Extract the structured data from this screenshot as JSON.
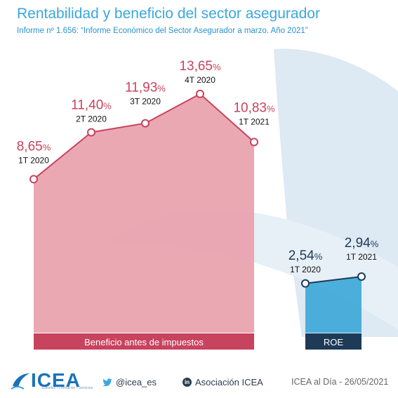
{
  "title": "Rentabilidad y beneficio del sector asegurador",
  "subtitle": "Informe nº 1.656: “Informe Económico del Sector Asegurador a marzo. Año 2021”",
  "chart_data": [
    {
      "type": "area",
      "name": "Beneficio antes de impuestos",
      "categories": [
        "1T 2020",
        "2T 2020",
        "3T 2020",
        "4T 2020",
        "1T 2021"
      ],
      "values": [
        8.65,
        11.4,
        11.93,
        13.65,
        10.83
      ],
      "value_labels": [
        "8,65",
        "11,40",
        "11,93",
        "13,65",
        "10,83"
      ],
      "unit": "%",
      "color": "#e8a1ac",
      "label_color": "#c8435e"
    },
    {
      "type": "area",
      "name": "ROE",
      "categories": [
        "1T 2020",
        "1T 2021"
      ],
      "values": [
        2.54,
        2.94
      ],
      "value_labels": [
        "2,54",
        "2,94"
      ],
      "unit": "%",
      "color": "#3ea8d8",
      "label_color": "#1d3a57"
    }
  ],
  "footer": {
    "logo": "ICEA",
    "logo_tagline": "Estudios • Formación • Servicios",
    "twitter": "@icea_es",
    "linkedin": "Asociación ICEA",
    "linkedin_badge": "in",
    "date": "ICEA al Día - 26/05/2021"
  },
  "colors": {
    "accent": "#3aa8dd",
    "profit_band": "#c8435e",
    "roe_band": "#1d3a57",
    "background_shape": "#dde9f3"
  }
}
